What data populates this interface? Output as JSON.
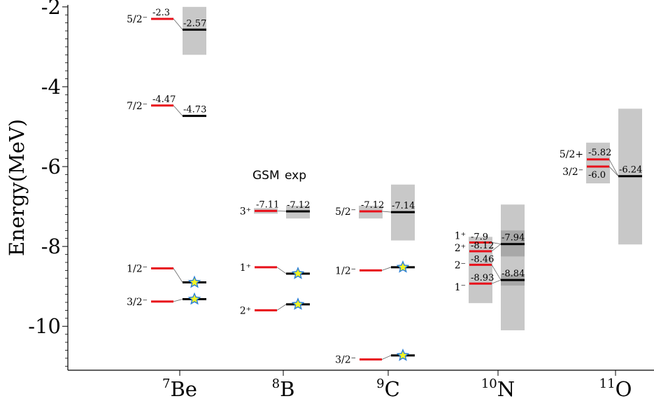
{
  "chart_data": {
    "type": "level-scheme",
    "ylabel": "Energy(MeV)",
    "ylim": [
      -11.1,
      -1.95
    ],
    "yticks": [
      -10,
      -8,
      -6,
      -4,
      -2
    ],
    "legend": {
      "gsm_label": "GSM",
      "exp_label": "exp"
    },
    "colors": {
      "gsm": "#e8101a",
      "exp": "#000000",
      "band": "#c8c8c8",
      "band_dark": "#a8a8a8",
      "star_fill": "#f5f522",
      "star_stroke": "#2b7fd6",
      "connector": "#666666"
    },
    "nuclei": [
      {
        "name": "Be",
        "mass": "7",
        "states": [
          {
            "jpi": "5/2⁻",
            "gsm": -2.3,
            "gsm_label": "-2.3",
            "exp": -2.57,
            "exp_label": "-2.57",
            "exp_band": [
              -3.2,
              -2.0
            ]
          },
          {
            "jpi": "7/2⁻",
            "gsm": -4.47,
            "gsm_label": "-4.47",
            "exp": -4.73,
            "exp_label": "-4.73"
          },
          {
            "jpi": "1/2⁻",
            "gsm": -8.55,
            "exp": -8.9,
            "star": true
          },
          {
            "jpi": "3/2⁻",
            "gsm": -9.38,
            "exp": -9.32,
            "star": true
          }
        ]
      },
      {
        "name": "B",
        "mass": "8",
        "states": [
          {
            "jpi": "3⁺",
            "gsm": -7.11,
            "gsm_label": "-7.11",
            "exp": -7.12,
            "exp_label": "-7.12",
            "gsm_band": [
              -7.18,
              -7.04
            ],
            "exp_band": [
              -7.3,
              -6.98
            ]
          },
          {
            "jpi": "1⁺",
            "gsm": -8.52,
            "exp": -8.68,
            "star": true
          },
          {
            "jpi": "2⁺",
            "gsm": -9.6,
            "exp": -9.45,
            "star": true
          }
        ]
      },
      {
        "name": "C",
        "mass": "9",
        "states": [
          {
            "jpi": "5/2⁻",
            "gsm": -7.12,
            "gsm_label": "-7.12",
            "exp": -7.14,
            "exp_label": "-7.14",
            "gsm_band": [
              -7.3,
              -6.98
            ],
            "exp_band": [
              -7.85,
              -6.45
            ]
          },
          {
            "jpi": "1/2⁻",
            "gsm": -8.6,
            "exp": -8.52,
            "star": true
          },
          {
            "jpi": "3/2⁻",
            "gsm": -10.83,
            "exp": -10.73,
            "star": true
          }
        ]
      },
      {
        "name": "N",
        "mass": "10",
        "gsm_band": [
          -9.42,
          -7.76
        ],
        "exp_band": [
          -10.1,
          -6.95
        ],
        "states": [
          {
            "jpi": "1⁺",
            "gsm": -7.9,
            "gsm_label": "-7.9",
            "exp": -7.94,
            "exp_label": "-7.94",
            "exp_band": [
              -8.25,
              -7.6
            ]
          },
          {
            "jpi": "2⁺",
            "gsm": -8.12,
            "gsm_label": "-8.12",
            "exp": -7.94
          },
          {
            "jpi": "2⁻",
            "gsm": -8.46,
            "gsm_label": "-8.46",
            "exp": -8.84
          },
          {
            "jpi": "1⁻",
            "gsm": -8.93,
            "gsm_label": "-8.93",
            "exp": -8.84,
            "exp_label": "-8.84",
            "exp_band": [
              -8.98,
              -8.7
            ]
          }
        ]
      },
      {
        "name": "O",
        "mass": "11",
        "states": [
          {
            "jpi": "5/2+",
            "gsm": -5.82,
            "gsm_label": "-5.82",
            "exp": -6.24,
            "exp_label": "-6.24",
            "gsm_band": [
              -6.42,
              -5.4
            ],
            "exp_band": [
              -7.95,
              -4.55
            ]
          },
          {
            "jpi": "3/2⁻",
            "gsm": -6.0,
            "gsm_label": "-6.0",
            "exp": -6.24
          }
        ]
      }
    ]
  }
}
